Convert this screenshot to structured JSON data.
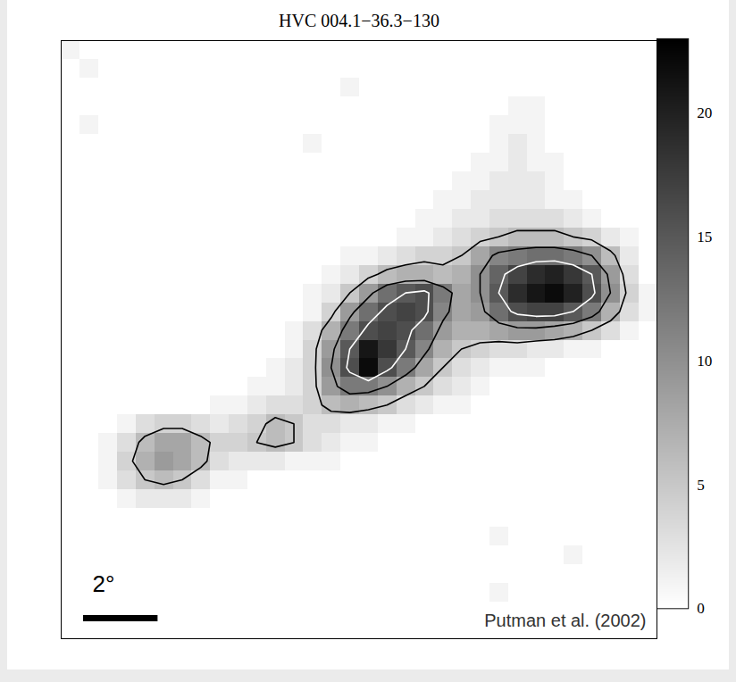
{
  "chart_data": {
    "type": "heatmap",
    "title": "HVC 004.1−36.3−130",
    "xlim": [
      0,
      16
    ],
    "ylim": [
      0,
      16
    ],
    "tick_labels": false,
    "cells": [
      [
        1,
        0,
        0,
        0,
        0,
        0,
        0,
        0,
        0,
        0,
        0,
        0,
        0,
        0,
        0,
        0,
        0,
        0,
        0,
        0,
        0,
        0,
        0,
        0,
        0,
        0,
        0,
        0,
        0,
        0,
        0,
        0
      ],
      [
        0,
        1,
        0,
        0,
        0,
        0,
        0,
        0,
        0,
        0,
        0,
        0,
        0,
        0,
        0,
        0,
        0,
        0,
        0,
        0,
        0,
        0,
        0,
        0,
        0,
        0,
        0,
        0,
        0,
        0,
        0,
        0
      ],
      [
        0,
        0,
        0,
        0,
        0,
        0,
        0,
        0,
        0,
        0,
        0,
        0,
        0,
        0,
        0,
        1,
        0,
        0,
        0,
        0,
        0,
        0,
        0,
        0,
        0,
        0,
        0,
        0,
        0,
        0,
        0,
        0
      ],
      [
        0,
        0,
        0,
        0,
        0,
        0,
        0,
        0,
        0,
        0,
        0,
        0,
        0,
        0,
        0,
        0,
        0,
        0,
        0,
        0,
        0,
        0,
        0,
        0,
        1,
        1,
        0,
        0,
        0,
        0,
        0,
        0
      ],
      [
        0,
        1,
        0,
        0,
        0,
        0,
        0,
        0,
        0,
        0,
        0,
        0,
        0,
        0,
        0,
        0,
        0,
        0,
        0,
        0,
        0,
        0,
        0,
        1,
        1,
        1,
        0,
        0,
        0,
        0,
        0,
        0
      ],
      [
        0,
        0,
        0,
        0,
        0,
        0,
        0,
        0,
        0,
        0,
        0,
        0,
        0,
        1,
        0,
        0,
        0,
        0,
        0,
        0,
        0,
        0,
        0,
        1,
        2,
        1,
        0,
        0,
        0,
        0,
        0,
        0
      ],
      [
        0,
        0,
        0,
        0,
        0,
        0,
        0,
        0,
        0,
        0,
        0,
        0,
        0,
        0,
        0,
        0,
        0,
        0,
        0,
        0,
        0,
        0,
        1,
        1,
        2,
        1,
        1,
        0,
        0,
        0,
        0,
        0
      ],
      [
        0,
        0,
        0,
        0,
        0,
        0,
        0,
        0,
        0,
        0,
        0,
        0,
        0,
        0,
        0,
        0,
        0,
        0,
        0,
        0,
        0,
        1,
        1,
        2,
        2,
        2,
        1,
        0,
        0,
        0,
        0,
        0
      ],
      [
        0,
        0,
        0,
        0,
        0,
        0,
        0,
        0,
        0,
        0,
        0,
        0,
        0,
        0,
        0,
        0,
        0,
        0,
        0,
        0,
        1,
        1,
        2,
        2,
        2,
        2,
        1,
        1,
        0,
        0,
        0,
        0
      ],
      [
        0,
        0,
        0,
        0,
        0,
        0,
        0,
        0,
        0,
        0,
        0,
        0,
        0,
        0,
        0,
        0,
        0,
        0,
        0,
        1,
        1,
        2,
        2,
        3,
        3,
        3,
        3,
        2,
        1,
        0,
        0,
        0
      ],
      [
        0,
        0,
        0,
        0,
        0,
        0,
        0,
        0,
        0,
        0,
        0,
        0,
        0,
        0,
        0,
        0,
        0,
        0,
        1,
        1,
        2,
        3,
        4,
        5,
        6,
        6,
        6,
        5,
        4,
        2,
        1,
        0
      ],
      [
        0,
        0,
        0,
        0,
        0,
        0,
        0,
        0,
        0,
        0,
        0,
        0,
        0,
        0,
        0,
        1,
        1,
        2,
        3,
        4,
        4,
        5,
        8,
        11,
        12,
        13,
        13,
        12,
        10,
        6,
        2,
        0
      ],
      [
        0,
        0,
        0,
        0,
        0,
        0,
        0,
        0,
        0,
        0,
        0,
        0,
        0,
        0,
        1,
        2,
        4,
        6,
        7,
        7,
        6,
        7,
        10,
        14,
        17,
        19,
        20,
        18,
        15,
        9,
        3,
        0
      ],
      [
        0,
        0,
        0,
        0,
        0,
        0,
        0,
        0,
        0,
        0,
        0,
        0,
        0,
        1,
        2,
        5,
        9,
        13,
        15,
        16,
        12,
        8,
        10,
        15,
        19,
        21,
        22,
        20,
        16,
        10,
        4,
        1
      ],
      [
        0,
        0,
        0,
        0,
        0,
        0,
        0,
        0,
        0,
        0,
        0,
        0,
        0,
        1,
        4,
        9,
        13,
        16,
        17,
        16,
        11,
        8,
        9,
        13,
        16,
        17,
        17,
        15,
        12,
        7,
        3,
        1
      ],
      [
        0,
        0,
        0,
        0,
        0,
        0,
        0,
        0,
        0,
        0,
        0,
        0,
        1,
        3,
        7,
        12,
        16,
        17,
        16,
        13,
        9,
        7,
        7,
        8,
        9,
        9,
        8,
        7,
        5,
        3,
        1,
        0
      ],
      [
        0,
        0,
        0,
        0,
        0,
        0,
        0,
        0,
        0,
        0,
        0,
        0,
        1,
        4,
        9,
        15,
        21,
        18,
        15,
        11,
        7,
        5,
        4,
        3,
        3,
        2,
        2,
        1,
        1,
        0,
        0,
        0
      ],
      [
        0,
        0,
        0,
        0,
        0,
        0,
        0,
        0,
        0,
        0,
        0,
        1,
        2,
        4,
        10,
        16,
        22,
        16,
        12,
        8,
        5,
        3,
        2,
        1,
        1,
        1,
        0,
        0,
        0,
        0,
        0,
        0
      ],
      [
        0,
        0,
        0,
        0,
        0,
        0,
        0,
        0,
        0,
        0,
        1,
        1,
        2,
        4,
        9,
        12,
        12,
        10,
        7,
        5,
        3,
        2,
        1,
        0,
        0,
        0,
        0,
        0,
        0,
        0,
        0,
        0
      ],
      [
        0,
        0,
        0,
        0,
        0,
        0,
        0,
        0,
        1,
        1,
        2,
        3,
        3,
        4,
        6,
        7,
        6,
        5,
        3,
        2,
        1,
        1,
        0,
        0,
        0,
        0,
        0,
        0,
        0,
        0,
        0,
        0
      ],
      [
        0,
        0,
        0,
        1,
        3,
        4,
        4,
        3,
        2,
        3,
        4,
        6,
        5,
        3,
        3,
        2,
        2,
        1,
        1,
        0,
        0,
        0,
        0,
        0,
        0,
        0,
        0,
        0,
        0,
        0,
        0,
        0
      ],
      [
        0,
        0,
        1,
        3,
        6,
        8,
        8,
        6,
        4,
        4,
        5,
        6,
        5,
        3,
        2,
        1,
        1,
        0,
        0,
        0,
        0,
        0,
        0,
        0,
        0,
        0,
        0,
        0,
        0,
        0,
        0,
        0
      ],
      [
        0,
        0,
        1,
        4,
        7,
        9,
        8,
        6,
        3,
        2,
        2,
        2,
        1,
        1,
        1,
        0,
        0,
        0,
        0,
        0,
        0,
        0,
        0,
        0,
        0,
        0,
        0,
        0,
        0,
        0,
        0,
        0
      ],
      [
        0,
        0,
        1,
        3,
        5,
        6,
        5,
        3,
        1,
        1,
        0,
        0,
        0,
        0,
        0,
        0,
        0,
        0,
        0,
        0,
        0,
        0,
        0,
        0,
        0,
        0,
        0,
        0,
        0,
        0,
        0,
        0
      ],
      [
        0,
        0,
        0,
        1,
        2,
        2,
        2,
        1,
        0,
        0,
        0,
        0,
        0,
        0,
        0,
        0,
        0,
        0,
        0,
        0,
        0,
        0,
        0,
        0,
        0,
        0,
        0,
        0,
        0,
        0,
        0,
        0
      ],
      [
        0,
        0,
        0,
        0,
        0,
        0,
        0,
        0,
        0,
        0,
        0,
        0,
        0,
        0,
        0,
        0,
        0,
        0,
        0,
        0,
        0,
        0,
        0,
        0,
        0,
        0,
        0,
        0,
        0,
        0,
        0,
        0
      ],
      [
        0,
        0,
        0,
        0,
        0,
        0,
        0,
        0,
        0,
        0,
        0,
        0,
        0,
        0,
        0,
        0,
        0,
        0,
        0,
        0,
        0,
        0,
        0,
        1,
        0,
        0,
        0,
        0,
        0,
        0,
        0,
        0
      ],
      [
        0,
        0,
        0,
        0,
        0,
        0,
        0,
        0,
        0,
        0,
        0,
        0,
        0,
        0,
        0,
        0,
        0,
        0,
        0,
        0,
        0,
        0,
        0,
        0,
        0,
        0,
        0,
        1,
        0,
        0,
        0,
        0
      ],
      [
        0,
        0,
        0,
        0,
        0,
        0,
        0,
        0,
        0,
        0,
        0,
        0,
        0,
        0,
        0,
        0,
        0,
        0,
        0,
        0,
        0,
        0,
        0,
        0,
        0,
        0,
        0,
        0,
        0,
        0,
        0,
        0
      ],
      [
        0,
        0,
        0,
        0,
        0,
        0,
        0,
        0,
        0,
        0,
        0,
        0,
        0,
        0,
        0,
        0,
        0,
        0,
        0,
        0,
        0,
        0,
        0,
        1,
        0,
        0,
        0,
        0,
        0,
        0,
        0,
        0
      ],
      [
        0,
        0,
        0,
        0,
        0,
        0,
        0,
        0,
        0,
        0,
        0,
        0,
        0,
        0,
        0,
        0,
        0,
        0,
        0,
        0,
        0,
        0,
        0,
        0,
        0,
        0,
        0,
        0,
        0,
        0,
        0,
        0
      ],
      [
        0,
        0,
        0,
        0,
        0,
        0,
        0,
        0,
        0,
        0,
        0,
        0,
        0,
        0,
        0,
        0,
        0,
        0,
        0,
        0,
        0,
        0,
        0,
        0,
        0,
        0,
        0,
        0,
        0,
        0,
        0,
        0
      ]
    ],
    "colorbar": {
      "lim": [
        0,
        23
      ],
      "ticks": [
        0,
        5,
        10,
        15,
        20
      ]
    },
    "contours": [
      5,
      10,
      15
    ],
    "scale_bar": {
      "label": "2°",
      "length": 2
    },
    "annotations": [
      "Putman et al. (2002)"
    ]
  }
}
